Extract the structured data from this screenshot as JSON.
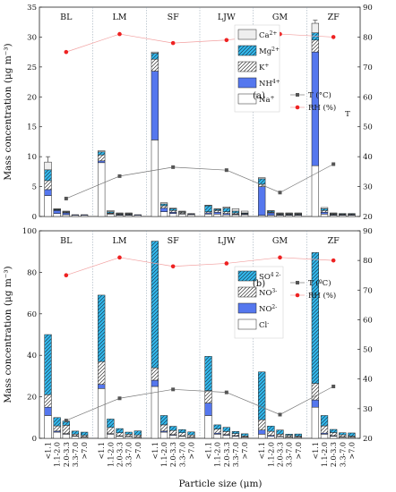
{
  "figure": {
    "xlabel": "Particle size (μm)",
    "size_bins": [
      "<1.1",
      "1.1-2.0",
      "2.0-3.3",
      "3.3-7.0",
      ">7.0"
    ],
    "sites": [
      "BL",
      "LM",
      "SF",
      "LJW",
      "GM",
      "ZF"
    ]
  },
  "colors": {
    "Ca2+": "#eeeeee",
    "Mg2+": "#33bbee",
    "K+": "#ffffff",
    "NH4+": "#5577ee",
    "Na+": "#ffffff",
    "SO42-": "#33bbee",
    "NO3-": "#ffffff",
    "NO2-": "#5577ee",
    "Cl-": "#ffffff",
    "T": "#555555",
    "RH": "#ee2222"
  },
  "chart_data": [
    {
      "type": "bar",
      "stacked": true,
      "panel_label": "(a)",
      "ylabel": "Mass concentration (μg m⁻³)",
      "ylim": [
        0,
        35
      ],
      "y_ticks": [
        0,
        5,
        10,
        15,
        20,
        25,
        30,
        35
      ],
      "y2lim": [
        20,
        90
      ],
      "y2_ticks": [
        20,
        30,
        40,
        50,
        60,
        70,
        80,
        90
      ],
      "categories": [
        "<1.1",
        "1.1-2.0",
        "2.0-3.3",
        "3.3-7.0",
        ">7.0"
      ],
      "sites": [
        "BL",
        "LM",
        "SF",
        "LJW",
        "GM",
        "ZF"
      ],
      "legend_position": "top-right",
      "series": [
        {
          "key": "Na+",
          "label": "Na+",
          "pattern": "solid",
          "values": [
            [
              3.5,
              0.5,
              0.3,
              0.2,
              0.2
            ],
            [
              9.0,
              0.4,
              0.2,
              0.2,
              0.2
            ],
            [
              12.8,
              0.8,
              0.5,
              0.4,
              0.3
            ],
            [
              0.4,
              0.4,
              0.3,
              0.3,
              0.3
            ],
            [
              0.2,
              0.2,
              0.2,
              0.2,
              0.2
            ],
            [
              8.5,
              0.4,
              0.2,
              0.2,
              0.2
            ]
          ]
        },
        {
          "key": "NH4+",
          "label": "NH4+",
          "pattern": "solid",
          "values": [
            [
              1.0,
              0.5,
              0.3,
              0.1,
              0.1
            ],
            [
              0.3,
              0.1,
              0.1,
              0.1,
              0.1
            ],
            [
              11.5,
              0.6,
              0.2,
              0.1,
              0.1
            ],
            [
              0.2,
              0.3,
              0.2,
              0.1,
              0.1
            ],
            [
              4.8,
              0.4,
              0.1,
              0.1,
              0.1
            ],
            [
              19.0,
              0.3,
              0.1,
              0.1,
              0.1
            ]
          ]
        },
        {
          "key": "K+",
          "label": "K+",
          "pattern": "diagonal",
          "values": [
            [
              1.5,
              0.1,
              0.1,
              0.0,
              0.0
            ],
            [
              1.0,
              0.1,
              0.1,
              0.1,
              0.0
            ],
            [
              2.0,
              0.4,
              0.3,
              0.2,
              0.1
            ],
            [
              0.2,
              0.3,
              0.3,
              0.2,
              0.1
            ],
            [
              0.4,
              0.1,
              0.1,
              0.1,
              0.1
            ],
            [
              2.0,
              0.3,
              0.1,
              0.1,
              0.1
            ]
          ]
        },
        {
          "key": "Mg2+",
          "label": "Mg2+",
          "pattern": "diagonal",
          "values": [
            [
              1.8,
              0.1,
              0.1,
              0.0,
              0.0
            ],
            [
              0.5,
              0.2,
              0.1,
              0.1,
              0.0
            ],
            [
              1.0,
              0.3,
              0.3,
              0.1,
              0.0
            ],
            [
              1.0,
              0.2,
              0.6,
              0.3,
              0.1
            ],
            [
              0.9,
              0.2,
              0.1,
              0.1,
              0.1
            ],
            [
              1.2,
              0.3,
              0.1,
              0.1,
              0.1
            ]
          ]
        },
        {
          "key": "Ca2+",
          "label": "Ca2+",
          "pattern": "solid",
          "values": [
            [
              1.3,
              0.1,
              0.1,
              0.0,
              0.0
            ],
            [
              0.2,
              0.2,
              0.1,
              0.1,
              0.0
            ],
            [
              0.2,
              0.2,
              0.1,
              0.1,
              0.0
            ],
            [
              0.1,
              0.1,
              0.2,
              0.4,
              0.3
            ],
            [
              0.2,
              0.1,
              0.1,
              0.1,
              0.1
            ],
            [
              1.6,
              0.2,
              0.1,
              0.0,
              0.0
            ]
          ]
        }
      ],
      "error_bars": [
        [
          0.9,
          0,
          0,
          0,
          0
        ],
        [
          0,
          0,
          0,
          0,
          0
        ],
        [
          0,
          0,
          0,
          0,
          0
        ],
        [
          0,
          0,
          0,
          0,
          0
        ],
        [
          0,
          0,
          0,
          0,
          0
        ],
        [
          0.5,
          0,
          0,
          0,
          0
        ]
      ],
      "T": {
        "label": "T  (°C)",
        "values": [
          26.0,
          33.5,
          36.5,
          35.5,
          28.0,
          37.5
        ]
      },
      "RH": {
        "label": "RH (%)",
        "values": [
          75.0,
          81.0,
          78.0,
          79.0,
          81.0,
          80.0
        ]
      },
      "stray_symbol": "T"
    },
    {
      "type": "bar",
      "stacked": true,
      "panel_label": "(b)",
      "ylabel": "Mass concentration (μg m⁻³)",
      "ylim": [
        0,
        100
      ],
      "y_ticks": [
        0,
        20,
        40,
        60,
        80,
        100
      ],
      "y2lim": [
        20,
        90
      ],
      "y2_ticks": [
        20,
        30,
        40,
        50,
        60,
        70,
        80,
        90
      ],
      "categories": [
        "<1.1",
        "1.1-2.0",
        "2.0-3.3",
        "3.3-7.0",
        ">7.0"
      ],
      "sites": [
        "BL",
        "LM",
        "SF",
        "LJW",
        "GM",
        "ZF"
      ],
      "legend_position": "middle-right",
      "series": [
        {
          "key": "Cl-",
          "label": "Cl-",
          "pattern": "solid",
          "values": [
            [
              11.0,
              3.0,
              2.0,
              1.0,
              0.5
            ],
            [
              24.0,
              2.0,
              1.0,
              0.8,
              0.5
            ],
            [
              25.0,
              3.0,
              1.5,
              1.0,
              0.5
            ],
            [
              11.0,
              2.0,
              1.5,
              1.0,
              0.5
            ],
            [
              2.0,
              1.0,
              0.8,
              0.5,
              0.5
            ],
            [
              15.0,
              2.0,
              1.0,
              0.5,
              0.5
            ]
          ]
        },
        {
          "key": "NO2-",
          "label": "NO2-",
          "pattern": "solid",
          "values": [
            [
              4.0,
              0.5,
              0.3,
              0.2,
              0.2
            ],
            [
              2.0,
              0.3,
              0.2,
              0.2,
              0.1
            ],
            [
              3.0,
              0.5,
              0.3,
              0.2,
              0.1
            ],
            [
              6.0,
              0.5,
              0.3,
              0.3,
              0.2
            ],
            [
              2.0,
              0.4,
              0.2,
              0.2,
              0.1
            ],
            [
              3.5,
              0.5,
              0.3,
              0.2,
              0.1
            ]
          ]
        },
        {
          "key": "NO3-",
          "label": "NO3-",
          "pattern": "diagonal",
          "values": [
            [
              6.0,
              2.5,
              4.0,
              0.8,
              0.8
            ],
            [
              11.0,
              3.0,
              1.5,
              1.0,
              1.0
            ],
            [
              6.0,
              3.0,
              2.0,
              1.5,
              1.0
            ],
            [
              6.0,
              2.0,
              1.5,
              1.0,
              0.5
            ],
            [
              5.0,
              2.0,
              1.0,
              0.8,
              0.5
            ],
            [
              8.0,
              3.5,
              1.5,
              1.0,
              0.5
            ]
          ]
        },
        {
          "key": "SO42-",
          "label": "SO42-",
          "pattern": "diagonal",
          "values": [
            [
              29.0,
              4.0,
              2.0,
              1.5,
              1.5
            ],
            [
              32.0,
              4.0,
              2.0,
              1.0,
              2.0
            ],
            [
              61.0,
              4.5,
              2.0,
              1.5,
              1.5
            ],
            [
              16.5,
              2.0,
              2.0,
              1.0,
              1.0
            ],
            [
              23.0,
              2.5,
              2.0,
              0.5,
              1.0
            ],
            [
              63.0,
              5.0,
              1.5,
              1.0,
              1.5
            ]
          ]
        }
      ],
      "error_bars": [
        [
          0,
          0,
          0,
          0,
          0
        ],
        [
          0,
          0,
          0,
          0,
          0
        ],
        [
          0,
          0,
          0,
          0,
          0
        ],
        [
          0,
          0,
          0,
          0,
          0
        ],
        [
          0,
          0,
          0,
          0,
          0
        ],
        [
          0,
          0,
          0,
          0,
          0
        ]
      ],
      "T": {
        "label": "T  (ºC)",
        "values": [
          26.0,
          33.5,
          36.5,
          35.5,
          28.0,
          37.5
        ]
      },
      "RH": {
        "label": "RH (%)",
        "values": [
          75.0,
          81.0,
          78.0,
          79.0,
          81.0,
          80.0
        ]
      }
    }
  ]
}
